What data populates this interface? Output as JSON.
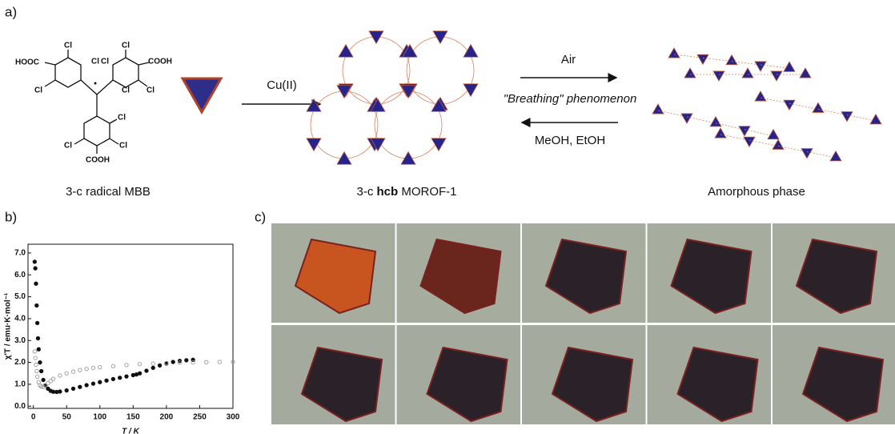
{
  "panels": {
    "a": "a)",
    "b": "b)",
    "c": "c)"
  },
  "scheme": {
    "molecule_atoms": [
      "HOOC",
      "Cl",
      "Cl",
      "Cl",
      "Cl",
      "Cl",
      "COOH",
      "Cl",
      "Cl",
      "Cl",
      "Cl",
      "Cl",
      "COOH"
    ],
    "reagent": "Cu(II)",
    "forward": "Air",
    "process": "\"Breathing\" phenomenon",
    "reverse": "MeOH, EtOH",
    "caption_mbb": "3-c radical MBB",
    "caption_morof": {
      "prefix": "3-c",
      "bold": "hcb",
      "name": "MOROF-1"
    },
    "caption_amorphous": "Amorphous phase"
  },
  "chart_data": {
    "type": "scatter",
    "ylabel": "χ'T / emu·K·mol⁻¹",
    "xlabel": "T / K",
    "xlim": [
      -8,
      300
    ],
    "ylim": [
      -0.1,
      7.4
    ],
    "xticks": [
      0,
      50,
      100,
      150,
      200,
      250,
      300
    ],
    "yticks": [
      {
        "value": 0,
        "label": "0.0"
      },
      {
        "value": 1,
        "label": "1.0"
      },
      {
        "value": 2,
        "label": "2.0"
      },
      {
        "value": 3,
        "label": "3.0"
      },
      {
        "value": 4,
        "label": "4.0"
      },
      {
        "value": 5,
        "label": "5.0"
      },
      {
        "value": 6,
        "label": "6.0"
      },
      {
        "value": 7,
        "label": "7.0"
      }
    ],
    "series": [
      {
        "color": "#111111",
        "marker": "filled",
        "x": [
          2,
          3,
          4,
          5,
          6,
          7,
          8,
          10,
          12,
          15,
          18,
          22,
          26,
          30,
          35,
          40,
          50,
          60,
          70,
          80,
          90,
          100,
          110,
          120,
          130,
          140,
          150,
          155,
          160,
          170,
          180,
          190,
          200,
          210,
          220,
          230,
          240
        ],
        "values": [
          6.6,
          6.3,
          5.6,
          4.6,
          3.8,
          3.1,
          2.6,
          2.0,
          1.6,
          1.2,
          0.95,
          0.8,
          0.7,
          0.66,
          0.65,
          0.67,
          0.72,
          0.8,
          0.88,
          0.96,
          1.03,
          1.1,
          1.17,
          1.24,
          1.3,
          1.36,
          1.42,
          1.45,
          1.5,
          1.62,
          1.75,
          1.86,
          1.95,
          2.02,
          2.07,
          2.1,
          2.12
        ]
      },
      {
        "color": "#999999",
        "marker": "open",
        "x": [
          2,
          3,
          4,
          5,
          6,
          8,
          10,
          12,
          15,
          18,
          22,
          26,
          30,
          40,
          50,
          60,
          70,
          80,
          90,
          100,
          120,
          140,
          160,
          180,
          200,
          220,
          240,
          260,
          280,
          300
        ],
        "values": [
          2.5,
          2.2,
          1.9,
          1.6,
          1.35,
          1.1,
          0.95,
          0.9,
          0.88,
          0.95,
          1.05,
          1.15,
          1.25,
          1.4,
          1.5,
          1.58,
          1.65,
          1.7,
          1.75,
          1.78,
          1.83,
          1.88,
          1.92,
          1.95,
          1.97,
          1.99,
          2.0,
          2.01,
          2.02,
          2.02
        ]
      }
    ]
  }
}
